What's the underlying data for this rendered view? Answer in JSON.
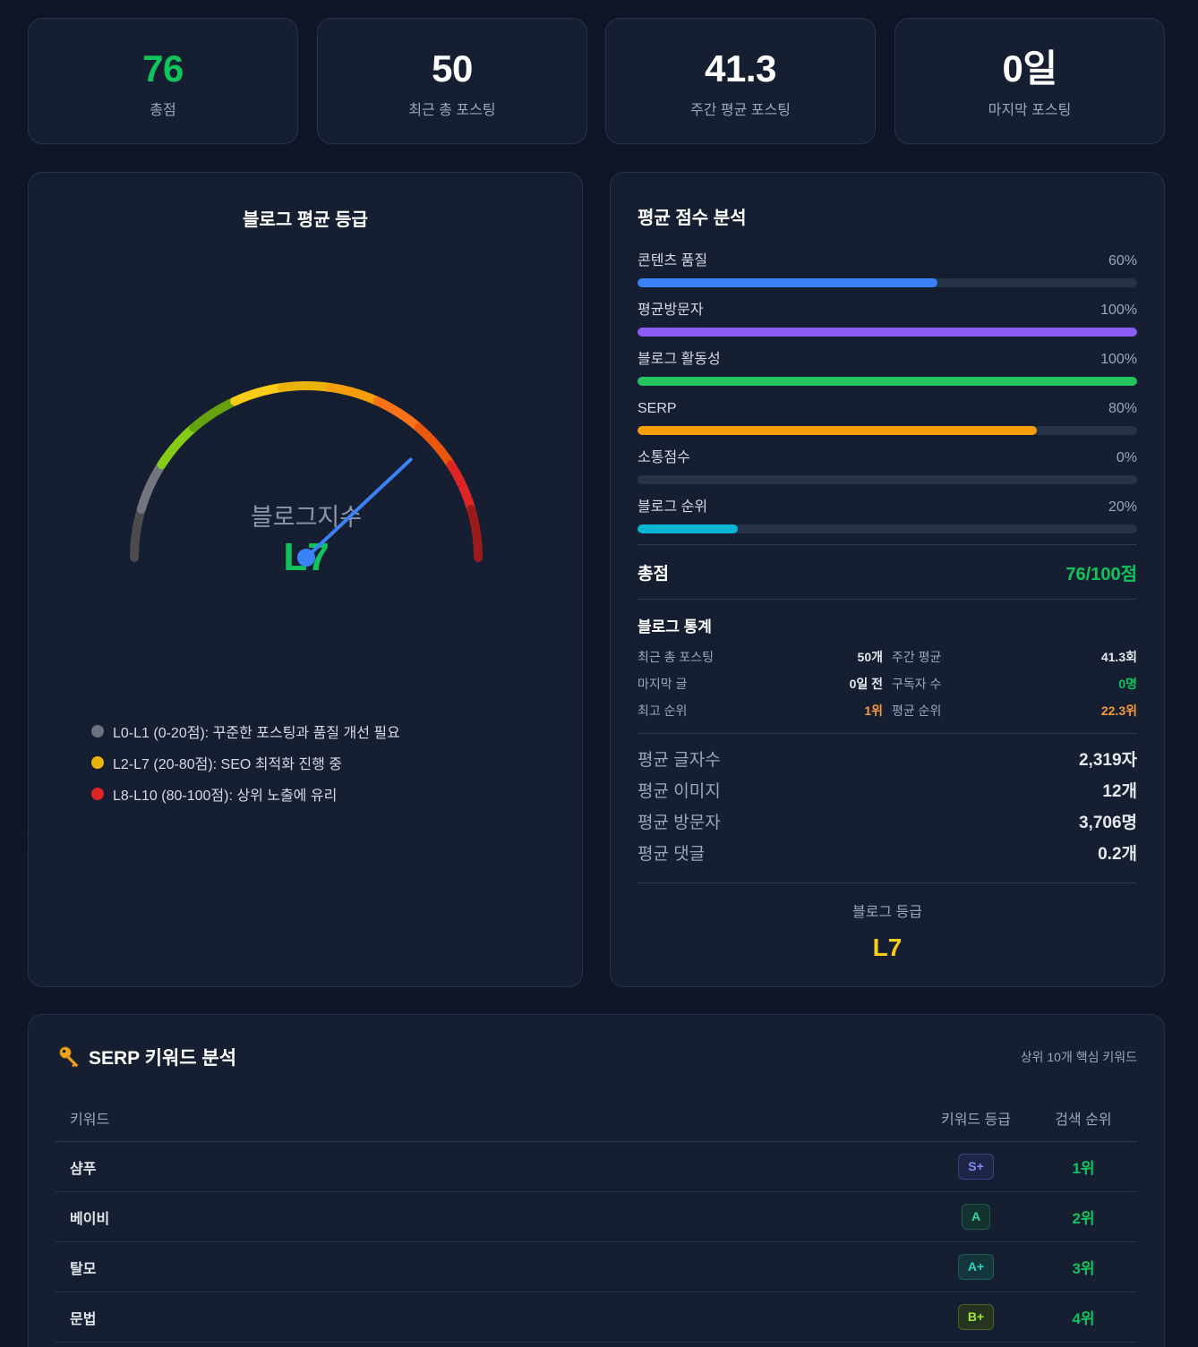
{
  "stats": [
    {
      "value": "76",
      "label": "총점",
      "highlight": true
    },
    {
      "value": "50",
      "label": "최근 총 포스팅",
      "highlight": false
    },
    {
      "value": "41.3",
      "label": "주간 평균 포스팅",
      "highlight": false
    },
    {
      "value": "0일",
      "label": "마지막 포스팅",
      "highlight": false
    }
  ],
  "gauge": {
    "title": "블로그 평균 등급",
    "center_label": "블로그지수",
    "level": "L7",
    "score": 76,
    "level_color": "#10c45c",
    "needle_color": "#3b82f6",
    "segments": [
      "#4b4b4b",
      "#75757d",
      "#84cc16",
      "#65a30d",
      "#facc15",
      "#eab308",
      "#f59e0b",
      "#f97316",
      "#ea580c",
      "#dc2626",
      "#991b1b"
    ],
    "legend": [
      {
        "color": "#6b7280",
        "text": "L0-L1 (0-20점): 꾸준한 포스팅과 품질 개선 필요"
      },
      {
        "color": "#eab308",
        "text": "L2-L7 (20-80점): SEO 최적화 진행 중"
      },
      {
        "color": "#dc2626",
        "text": "L8-L10 (80-100점): 상위 노출에 유리"
      }
    ]
  },
  "analysis": {
    "title": "평균 점수 분석",
    "bars": [
      {
        "label": "콘텐츠 품질",
        "value": 60,
        "pct": "60%",
        "color": "#3b82f6"
      },
      {
        "label": "평균방문자",
        "value": 100,
        "pct": "100%",
        "color": "#8b5cf6"
      },
      {
        "label": "블로그 활동성",
        "value": 100,
        "pct": "100%",
        "color": "#22c55e"
      },
      {
        "label": "SERP",
        "value": 80,
        "pct": "80%",
        "color": "#f59e0b"
      },
      {
        "label": "소통점수",
        "value": 0,
        "pct": "0%",
        "color": "#ec4899"
      },
      {
        "label": "블로그 순위",
        "value": 20,
        "pct": "20%",
        "color": "#06b6d4"
      }
    ],
    "total_label": "총점",
    "total_value": "76/100점",
    "blog_stats": {
      "title": "블로그 통계",
      "items": [
        {
          "label": "최근 총 포스팅",
          "value": "50개",
          "tone": ""
        },
        {
          "label": "주간 평균",
          "value": "41.3회",
          "tone": ""
        },
        {
          "label": "마지막 글",
          "value": "0일 전",
          "tone": ""
        },
        {
          "label": "구독자 수",
          "value": "0명",
          "tone": "green"
        },
        {
          "label": "최고 순위",
          "value": "1위",
          "tone": "orange"
        },
        {
          "label": "평균 순위",
          "value": "22.3위",
          "tone": "orange"
        }
      ]
    },
    "metrics": [
      {
        "label": "평균 글자수",
        "value": "2,319자"
      },
      {
        "label": "평균 이미지",
        "value": "12개"
      },
      {
        "label": "평균 방문자",
        "value": "3,706명"
      },
      {
        "label": "평균 댓글",
        "value": "0.2개"
      }
    ],
    "grade_label": "블로그 등급",
    "grade_value": "L7"
  },
  "keywords": {
    "icon": "key-icon",
    "title": "SERP 키워드 분석",
    "subtitle": "상위 10개 핵심 키워드",
    "columns": {
      "keyword": "키워드",
      "grade": "키워드 등급",
      "rank": "검색 순위"
    },
    "rows": [
      {
        "keyword": "샴푸",
        "grade": "S+",
        "grade_fg": "#818cf8",
        "grade_bg": "#1e2547",
        "grade_border": "#3b4382",
        "rank": "1위"
      },
      {
        "keyword": "베이비",
        "grade": "A",
        "grade_fg": "#34d399",
        "grade_bg": "#143330",
        "grade_border": "#1e5b45",
        "rank": "2위"
      },
      {
        "keyword": "탈모",
        "grade": "A+",
        "grade_fg": "#2dd4bf",
        "grade_bg": "#14353a",
        "grade_border": "#1d5b55",
        "rank": "3위"
      },
      {
        "keyword": "문법",
        "grade": "B+",
        "grade_fg": "#a3e635",
        "grade_bg": "#25331f",
        "grade_border": "#4a6424",
        "rank": "4위"
      }
    ]
  }
}
